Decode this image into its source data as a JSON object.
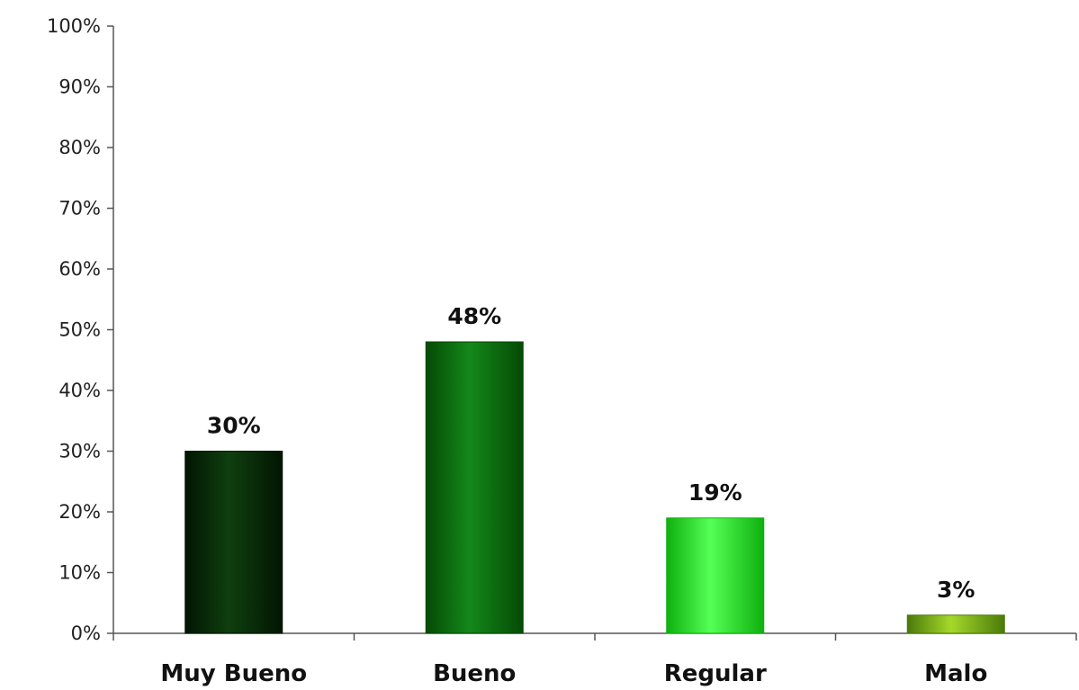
{
  "chart_data": {
    "type": "bar",
    "title": "",
    "xlabel": "",
    "ylabel": "",
    "categories": [
      "Muy Bueno",
      "Bueno",
      "Regular",
      "Malo"
    ],
    "values": [
      30,
      48,
      19,
      3
    ],
    "data_labels": [
      "30%",
      "48%",
      "19%",
      "3%"
    ],
    "ylim": [
      0,
      100
    ],
    "yticks": [
      "0%",
      "10%",
      "20%",
      "30%",
      "40%",
      "50%",
      "60%",
      "70%",
      "80%",
      "90%",
      "100%"
    ],
    "grid": false,
    "legend": "none",
    "bar_colors": [
      [
        "#062a06",
        "#0f3f0f",
        "#021502"
      ],
      [
        "#0a6a0a",
        "#14881a",
        "#054a05"
      ],
      [
        "#22dd22",
        "#55ff55",
        "#0fb00f"
      ],
      [
        "#6aa014",
        "#a6d82a",
        "#4a7a0a"
      ]
    ]
  }
}
